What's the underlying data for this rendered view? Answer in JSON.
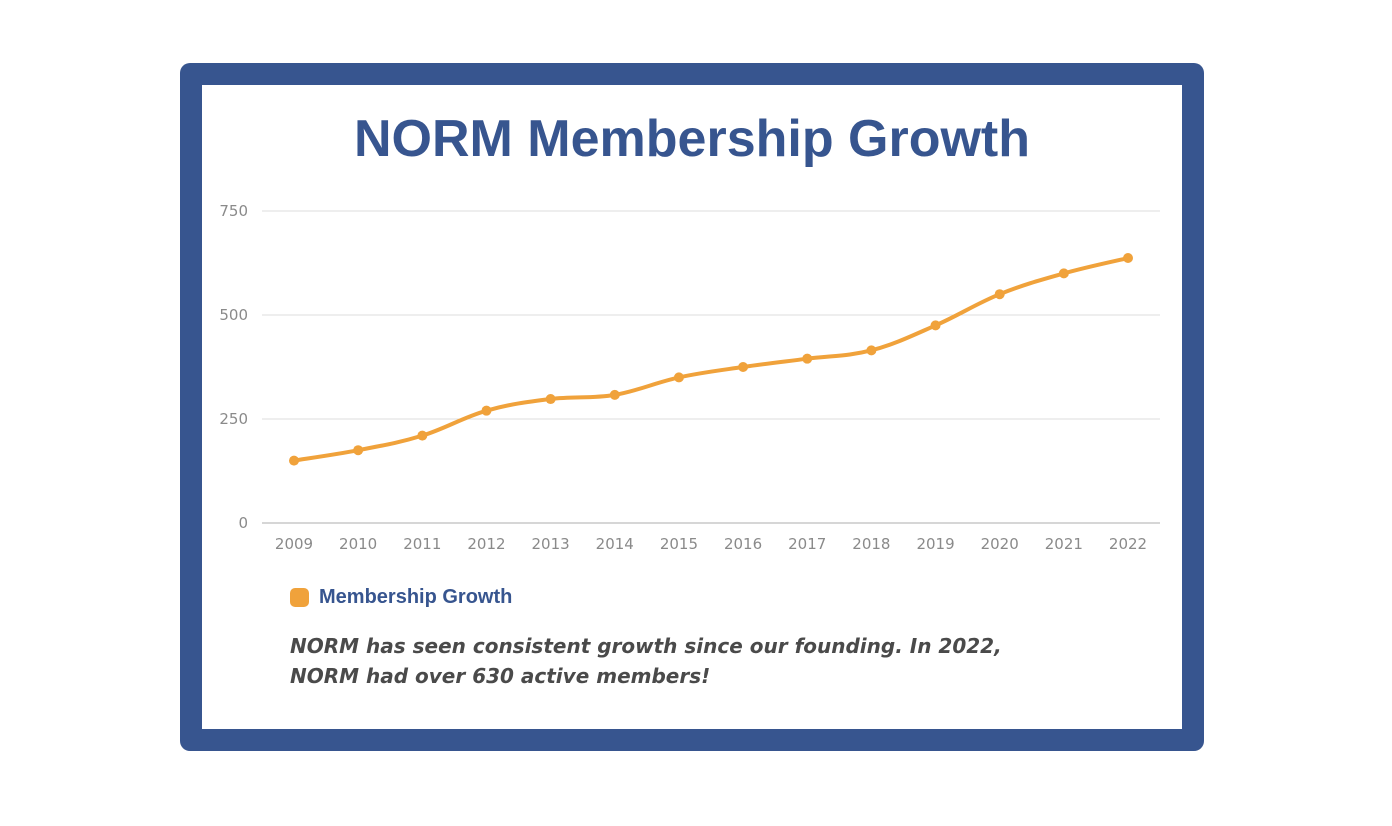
{
  "caption": "NORM has seen consistent growth since our founding. In 2022, NORM had over 630 active members!",
  "chart_data": {
    "type": "line",
    "title": "NORM Membership Growth",
    "xlabel": "",
    "ylabel": "",
    "categories": [
      "2009",
      "2010",
      "2011",
      "2012",
      "2013",
      "2014",
      "2015",
      "2016",
      "2017",
      "2018",
      "2019",
      "2020",
      "2021",
      "2022"
    ],
    "series": [
      {
        "name": "Membership Growth",
        "values": [
          150,
          175,
          210,
          270,
          298,
          308,
          350,
          375,
          395,
          415,
          475,
          550,
          600,
          637
        ],
        "color": "#f0a23b"
      }
    ],
    "y_ticks": [
      0,
      250,
      500,
      750
    ],
    "ylim": [
      0,
      750
    ],
    "grid": true,
    "legend_position": "bottom-left"
  }
}
